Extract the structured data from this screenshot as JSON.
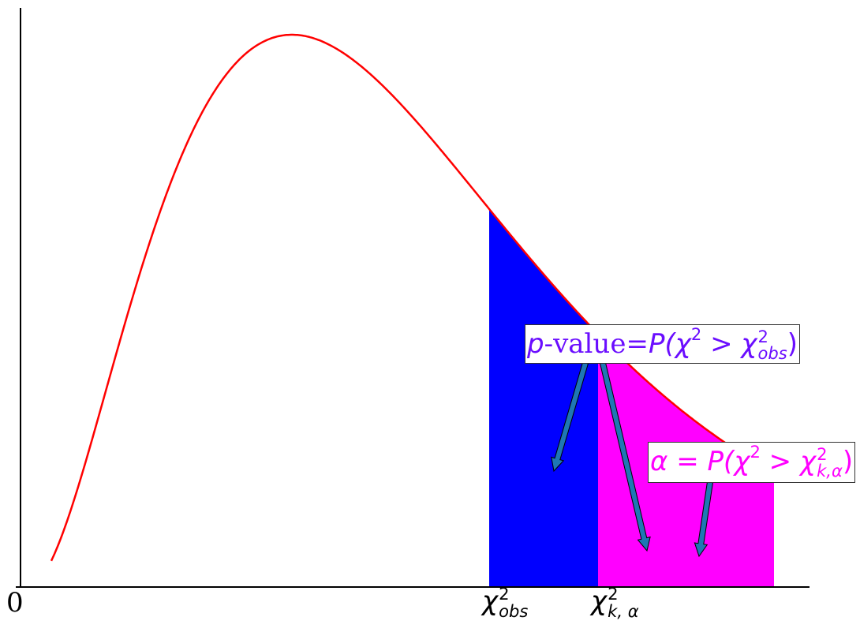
{
  "diagram": {
    "curve": {
      "color": "#ff0000"
    },
    "shading": {
      "pvalue_color": "#0000ff",
      "alpha_color": "#ff00ff"
    },
    "annotations": {
      "pvalue": {
        "p": "p",
        "rest": "-value=",
        "P": "P(",
        "chi": "χ",
        "two": "2",
        "gt": " > ",
        "chi2": "χ",
        "sup": "2",
        "sub": "obs",
        "close": ")",
        "color": "#6a0dff"
      },
      "alpha": {
        "a": "α",
        "eq": " = ",
        "P": "P(",
        "chi": "χ",
        "two": "2",
        "gt": " > ",
        "chi2": "χ",
        "sup": "2",
        "sub": "k,α",
        "close": ")",
        "color": "#ff00ff"
      },
      "arrow_color": "#1f77b4"
    },
    "ticks": {
      "zero": "0",
      "obs": {
        "base": "χ",
        "sup": "2",
        "sub": "obs"
      },
      "crit": {
        "base": "χ",
        "sup": "2",
        "sub": "k, α"
      }
    }
  }
}
